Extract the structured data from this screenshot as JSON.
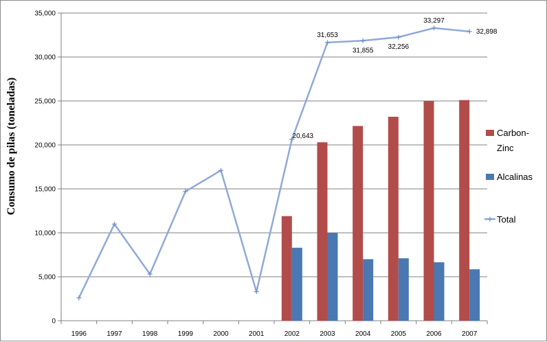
{
  "chart_data": {
    "type": "bar",
    "title": "",
    "xlabel": "",
    "ylabel": "Consumo de pilas  (toneladas)",
    "ylim": [
      0,
      35000
    ],
    "yticks": [
      0,
      5000,
      10000,
      15000,
      20000,
      25000,
      30000,
      35000
    ],
    "ytick_labels": [
      "0",
      "5,000",
      "10,000",
      "15,000",
      "20,000",
      "25,000",
      "30,000",
      "35,000"
    ],
    "grid": true,
    "legend_position": "right",
    "categories": [
      "1996",
      "1997",
      "1998",
      "1999",
      "2000",
      "2001",
      "2002",
      "2003",
      "2004",
      "2005",
      "2006",
      "2007"
    ],
    "series": [
      {
        "name": "Carbon-Zinc",
        "kind": "bar",
        "color": "#b24c4a",
        "values": [
          null,
          null,
          null,
          null,
          null,
          null,
          11900,
          20300,
          22150,
          23200,
          25000,
          25100
        ]
      },
      {
        "name": "Alcalinas",
        "kind": "bar",
        "color": "#4a78b2",
        "values": [
          null,
          null,
          null,
          null,
          null,
          null,
          8300,
          10000,
          7000,
          7100,
          6650,
          5850
        ]
      },
      {
        "name": "Total",
        "kind": "line",
        "color": "#8ea9d8",
        "values": [
          2600,
          11000,
          5300,
          14700,
          17100,
          3300,
          20643,
          31653,
          31855,
          32256,
          33297,
          32898
        ],
        "labels": [
          null,
          null,
          null,
          null,
          null,
          null,
          "20,643",
          "31,653",
          "31,855",
          "32,256",
          "33,297",
          "32,898"
        ]
      }
    ],
    "legend": {
      "carbon_line1": "Carbon-",
      "carbon_line2": "Zinc",
      "alcalinas": "Alcalinas",
      "total": "Total"
    }
  }
}
